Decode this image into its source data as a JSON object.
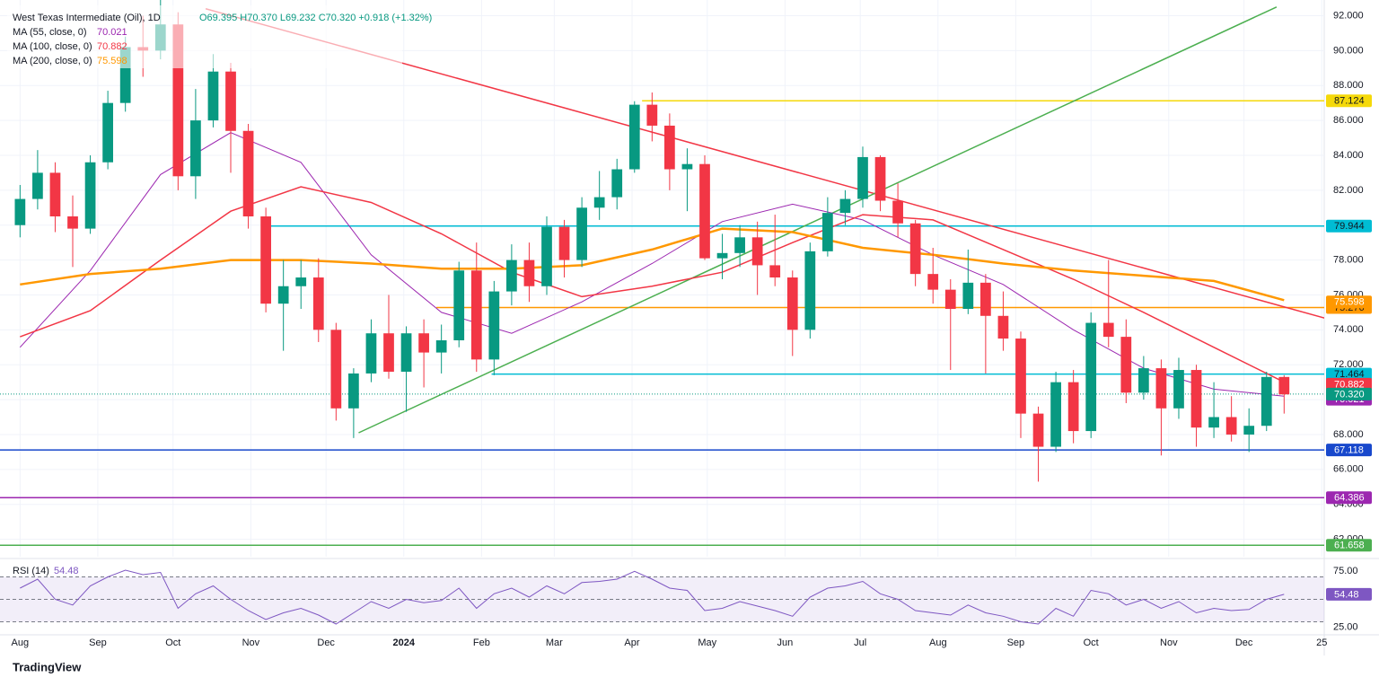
{
  "chart_data": {
    "type": "candlestick",
    "title": "West Texas Intermediate (Oil), 1D",
    "ohlc_text": "O69.395 H70.370 L69.232 C70.320 +0.918 (+1.32%)",
    "up_color": "#089981",
    "down_color": "#f23645",
    "x": [
      0,
      7,
      14,
      21,
      28,
      35,
      42,
      49,
      56,
      63,
      70,
      77,
      84,
      91,
      98,
      105,
      112,
      119,
      126,
      133,
      140,
      147,
      154,
      161,
      168,
      175,
      182,
      189,
      196,
      203,
      210,
      217,
      224,
      231,
      238,
      245,
      252,
      259,
      266,
      273,
      280,
      287,
      294,
      301,
      308,
      315,
      322,
      329,
      336,
      343,
      350,
      357,
      364,
      371,
      378,
      385,
      392,
      399,
      406,
      413,
      420,
      427,
      434,
      441,
      448,
      455,
      462,
      469,
      476,
      483,
      490,
      497,
      504
    ],
    "open": [
      80.0,
      81.5,
      83.0,
      80.5,
      79.8,
      83.6,
      87.0,
      90.2,
      90.0,
      91.5,
      82.8,
      86.0,
      88.8,
      85.4,
      80.5,
      75.5,
      76.5,
      77.0,
      74.0,
      69.5,
      71.5,
      73.8,
      71.6,
      73.8,
      72.7,
      73.4,
      77.4,
      72.3,
      76.2,
      78.0,
      76.5,
      79.9,
      78.0,
      81.0,
      81.6,
      83.2,
      86.9,
      85.7,
      83.2,
      83.5,
      78.1,
      78.4,
      79.3,
      77.7,
      77.0,
      74.0,
      78.5,
      80.7,
      81.5,
      83.9,
      81.4,
      80.1,
      77.2,
      76.3,
      75.2,
      76.7,
      74.8,
      73.5,
      69.2,
      67.3,
      71.0,
      68.2,
      74.4,
      73.6,
      70.4,
      71.8,
      69.5,
      71.7,
      68.4,
      69.0,
      68.0,
      68.5,
      71.3
    ],
    "high": [
      82.3,
      84.3,
      83.6,
      81.7,
      84.0,
      87.7,
      90.8,
      92.0,
      93.5,
      92.2,
      87.8,
      89.8,
      89.3,
      85.8,
      81.0,
      78.0,
      78.0,
      78.1,
      74.4,
      71.8,
      74.6,
      76.0,
      74.2,
      74.6,
      74.3,
      77.9,
      79.0,
      76.8,
      78.9,
      79.0,
      80.5,
      80.3,
      81.6,
      83.1,
      83.8,
      87.1,
      87.6,
      86.4,
      84.4,
      84.0,
      79.5,
      80.0,
      80.2,
      80.6,
      77.4,
      79.0,
      81.6,
      82.0,
      84.5,
      84.0,
      82.4,
      80.3,
      78.7,
      76.9,
      78.6,
      77.2,
      76.2,
      73.9,
      69.6,
      71.6,
      71.7,
      75.0,
      78.0,
      74.6,
      72.5,
      72.3,
      72.4,
      72.0,
      71.0,
      70.2,
      69.5,
      71.6,
      71.4
    ],
    "low": [
      79.3,
      80.9,
      79.6,
      77.6,
      79.5,
      83.2,
      86.5,
      88.5,
      89.5,
      82.0,
      81.5,
      85.6,
      83.0,
      79.8,
      75.0,
      72.8,
      75.2,
      73.3,
      68.8,
      67.8,
      71.0,
      71.2,
      69.3,
      70.7,
      71.5,
      73.0,
      71.6,
      71.4,
      75.4,
      75.6,
      76.0,
      77.0,
      77.6,
      80.3,
      80.9,
      83.0,
      84.8,
      82.0,
      80.8,
      78.0,
      76.9,
      77.6,
      76.0,
      76.5,
      72.5,
      73.5,
      78.2,
      80.0,
      81.0,
      80.8,
      79.3,
      76.5,
      75.5,
      71.7,
      74.9,
      71.5,
      72.8,
      67.8,
      65.3,
      67.0,
      67.5,
      67.8,
      73.0,
      69.8,
      70.0,
      66.8,
      68.9,
      67.3,
      67.8,
      67.6,
      67.0,
      68.2,
      69.2
    ],
    "close": [
      81.5,
      83.0,
      80.5,
      79.8,
      83.6,
      87.0,
      90.2,
      90.0,
      91.5,
      82.8,
      86.0,
      88.8,
      85.4,
      80.5,
      75.5,
      76.5,
      77.0,
      74.0,
      69.5,
      71.5,
      73.8,
      71.6,
      73.8,
      72.7,
      73.4,
      77.4,
      72.3,
      76.2,
      78.0,
      76.5,
      79.9,
      78.0,
      81.0,
      81.6,
      83.2,
      86.9,
      85.7,
      83.2,
      83.5,
      78.1,
      78.4,
      79.3,
      77.7,
      77.0,
      74.0,
      78.5,
      80.7,
      81.5,
      83.9,
      81.4,
      80.1,
      77.2,
      76.3,
      75.2,
      76.7,
      74.8,
      73.5,
      69.2,
      67.3,
      71.0,
      68.2,
      74.4,
      73.6,
      70.4,
      71.8,
      69.5,
      71.7,
      68.4,
      69.0,
      68.0,
      68.5,
      71.3,
      70.3
    ],
    "last_price": {
      "value": 70.32,
      "label": "70.320"
    },
    "xlim": [
      -8,
      520
    ],
    "ylim": [
      61.0,
      92.9
    ],
    "xticks": [
      {
        "value": 0,
        "label": "Aug"
      },
      {
        "value": 31,
        "label": "Sep"
      },
      {
        "value": 61,
        "label": "Oct"
      },
      {
        "value": 92,
        "label": "Nov"
      },
      {
        "value": 122,
        "label": "Dec"
      },
      {
        "value": 153,
        "label": "2024"
      },
      {
        "value": 184,
        "label": "Feb"
      },
      {
        "value": 213,
        "label": "Mar"
      },
      {
        "value": 244,
        "label": "Apr"
      },
      {
        "value": 274,
        "label": "May"
      },
      {
        "value": 305,
        "label": "Jun"
      },
      {
        "value": 335,
        "label": "Jul"
      },
      {
        "value": 366,
        "label": "Aug"
      },
      {
        "value": 397,
        "label": "Sep"
      },
      {
        "value": 427,
        "label": "Oct"
      },
      {
        "value": 458,
        "label": "Nov"
      },
      {
        "value": 488,
        "label": "Dec"
      },
      {
        "value": 519,
        "label": "25"
      }
    ],
    "yticks": [
      {
        "value": 62,
        "label": "62.000"
      },
      {
        "value": 64,
        "label": "64.000"
      },
      {
        "value": 66,
        "label": "66.000"
      },
      {
        "value": 68,
        "label": "68.000"
      },
      {
        "value": 70,
        "label": "70.000"
      },
      {
        "value": 72,
        "label": "72.000"
      },
      {
        "value": 74,
        "label": "74.000"
      },
      {
        "value": 76,
        "label": "76.000"
      },
      {
        "value": 78,
        "label": "78.000"
      },
      {
        "value": 80,
        "label": "80.000"
      },
      {
        "value": 82,
        "label": "82.000"
      },
      {
        "value": 84,
        "label": "84.000"
      },
      {
        "value": 86,
        "label": "86.000"
      },
      {
        "value": 88,
        "label": "88.000"
      },
      {
        "value": 90,
        "label": "90.000"
      },
      {
        "value": 92,
        "label": "92.000"
      }
    ],
    "ma": [
      {
        "name": "MA (55, close, 0)",
        "last": 70.021,
        "color": "#9c27b0",
        "width": 1,
        "x": [
          0,
          28,
          56,
          84,
          112,
          140,
          168,
          196,
          224,
          252,
          280,
          308,
          336,
          364,
          392,
          420,
          448,
          476,
          504
        ],
        "values": [
          73.0,
          77.4,
          82.9,
          85.3,
          83.6,
          78.3,
          75.0,
          73.8,
          75.6,
          77.8,
          80.2,
          81.2,
          80.3,
          78.3,
          76.6,
          74.0,
          71.8,
          70.6,
          70.2
        ]
      },
      {
        "name": "MA (100, close, 0)",
        "last": 70.882,
        "color": "#f23645",
        "width": 1.5,
        "x": [
          0,
          28,
          56,
          84,
          112,
          140,
          168,
          196,
          224,
          252,
          280,
          308,
          336,
          364,
          392,
          420,
          448,
          476,
          504
        ],
        "values": [
          73.6,
          75.1,
          78.0,
          80.8,
          82.2,
          81.3,
          79.5,
          77.3,
          75.9,
          76.5,
          77.3,
          79.0,
          80.6,
          80.3,
          78.6,
          76.9,
          75.0,
          73.0,
          71.0
        ]
      },
      {
        "name": "MA (200, close, 0)",
        "last": 75.598,
        "color": "#ff9800",
        "width": 2.5,
        "x": [
          0,
          28,
          56,
          84,
          112,
          140,
          168,
          196,
          224,
          252,
          280,
          308,
          336,
          364,
          392,
          420,
          448,
          476,
          504
        ],
        "values": [
          76.6,
          77.2,
          77.5,
          78.0,
          78.0,
          77.8,
          77.5,
          77.5,
          77.7,
          78.6,
          79.8,
          79.6,
          78.7,
          78.3,
          77.8,
          77.4,
          77.1,
          76.8,
          75.7
        ]
      }
    ],
    "levels": [
      {
        "value": 87.124,
        "start": 248,
        "color": "#f5d90a",
        "text_color": "#131722"
      },
      {
        "value": 79.944,
        "start": 96,
        "color": "#00bcd4",
        "text_color": "#131722"
      },
      {
        "value": 75.276,
        "start": 166,
        "color": "#ff9800",
        "text_color": "#131722"
      },
      {
        "value": 71.464,
        "start": 188,
        "color": "#00bcd4",
        "text_color": "#131722"
      },
      {
        "value": 67.118,
        "start": -8,
        "color": "#1848cc",
        "text_color": "#ffffff"
      },
      {
        "value": 64.386,
        "start": -8,
        "color": "#9c27b0",
        "text_color": "#ffffff"
      },
      {
        "value": 61.658,
        "start": -8,
        "color": "#4caf50",
        "text_color": "#ffffff"
      }
    ],
    "trendlines": [
      {
        "color": "#f23645",
        "x": [
          74,
          522
        ],
        "y": [
          92.4,
          74.6
        ]
      },
      {
        "color": "#4caf50",
        "x": [
          135,
          501
        ],
        "y": [
          68.1,
          92.5
        ]
      }
    ],
    "rsi": {
      "name": "RSI (14)",
      "last": 54.48,
      "color": "#7e57c2",
      "values": [
        60,
        68,
        50,
        45,
        62,
        70,
        76,
        72,
        74,
        42,
        55,
        62,
        50,
        40,
        32,
        38,
        42,
        36,
        28,
        38,
        48,
        42,
        50,
        47,
        49,
        60,
        42,
        55,
        60,
        52,
        62,
        55,
        65,
        66,
        68,
        75,
        68,
        60,
        58,
        40,
        42,
        48,
        44,
        40,
        35,
        52,
        60,
        62,
        66,
        55,
        50,
        40,
        38,
        36,
        45,
        38,
        35,
        30,
        28,
        42,
        35,
        58,
        55,
        45,
        50,
        42,
        48,
        38,
        42,
        40,
        41,
        50,
        54.48
      ],
      "ylim": [
        20,
        84
      ],
      "bands": [
        70,
        50,
        30
      ],
      "yticks": [
        {
          "value": 25,
          "label": "25.00"
        },
        {
          "value": 75,
          "label": "75.00"
        }
      ]
    },
    "brand": "TradingView"
  }
}
